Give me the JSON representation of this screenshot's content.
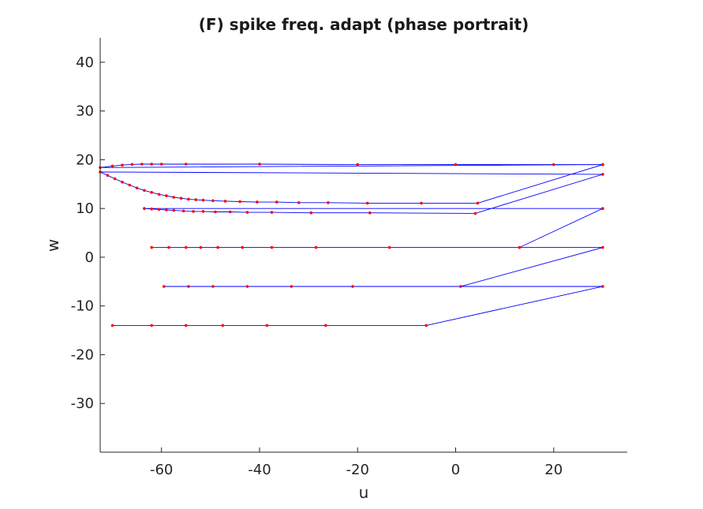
{
  "chart_data": {
    "type": "line",
    "title": "(F) spike freq. adapt (phase portrait)",
    "xlabel": "u",
    "ylabel": "w",
    "xlim": [
      -72.5,
      35
    ],
    "ylim": [
      -40,
      45
    ],
    "xticks": [
      -60,
      -40,
      -20,
      0,
      20
    ],
    "yticks": [
      -30,
      -20,
      -10,
      0,
      10,
      20,
      30,
      40
    ],
    "grid": false,
    "colors": {
      "trajectory": "#0000ff",
      "markers": "#ff0000",
      "axes": "#262626"
    },
    "series": [
      {
        "points": [
          [
            -70,
            -14
          ],
          [
            -62,
            -14
          ],
          [
            -55,
            -14
          ],
          [
            -47.5,
            -14
          ],
          [
            -38.5,
            -14
          ],
          [
            -26.5,
            -14
          ],
          [
            -6,
            -14
          ],
          [
            30,
            -6
          ],
          [
            -59.5,
            -6
          ],
          [
            -54.5,
            -6
          ],
          [
            -49.5,
            -6
          ],
          [
            -42.5,
            -6
          ],
          [
            -33.5,
            -6
          ],
          [
            -21,
            -6
          ],
          [
            1,
            -6
          ],
          [
            30,
            2
          ],
          [
            -62,
            2
          ],
          [
            -58.5,
            2
          ],
          [
            -55,
            2
          ],
          [
            -52,
            2
          ],
          [
            -48.5,
            2
          ],
          [
            -43.5,
            2
          ],
          [
            -37.5,
            2
          ],
          [
            -28.5,
            2
          ],
          [
            -13.5,
            2
          ],
          [
            13,
            2
          ],
          [
            30,
            10
          ],
          [
            -63.5,
            10
          ],
          [
            -62,
            9.9
          ],
          [
            -60.5,
            9.8
          ],
          [
            -59,
            9.7
          ],
          [
            -57.5,
            9.6
          ],
          [
            -55.5,
            9.5
          ],
          [
            -53.5,
            9.4
          ],
          [
            -51.5,
            9.4
          ],
          [
            -49,
            9.3
          ],
          [
            -46,
            9.3
          ],
          [
            -42.5,
            9.2
          ],
          [
            -37.5,
            9.2
          ],
          [
            -29.5,
            9.1
          ],
          [
            -17.5,
            9.1
          ],
          [
            4,
            9
          ],
          [
            30,
            17
          ],
          [
            -72.5,
            17.5
          ],
          [
            -71,
            16.8
          ],
          [
            -69.5,
            16.1
          ],
          [
            -68,
            15.4
          ],
          [
            -66.5,
            14.8
          ],
          [
            -65,
            14.2
          ],
          [
            -63.5,
            13.7
          ],
          [
            -62,
            13.3
          ],
          [
            -60.5,
            12.9
          ],
          [
            -59,
            12.6
          ],
          [
            -57.5,
            12.3
          ],
          [
            -56,
            12.1
          ],
          [
            -54.5,
            11.9
          ],
          [
            -53,
            11.8
          ],
          [
            -51.5,
            11.7
          ],
          [
            -49.5,
            11.6
          ],
          [
            -47,
            11.5
          ],
          [
            -44,
            11.4
          ],
          [
            -40.5,
            11.3
          ],
          [
            -36.5,
            11.3
          ],
          [
            -32,
            11.2
          ],
          [
            -26,
            11.2
          ],
          [
            -18,
            11.1
          ],
          [
            -7,
            11.1
          ],
          [
            4.5,
            11.1
          ],
          [
            30,
            19
          ],
          [
            -72.5,
            18.4
          ],
          [
            -70,
            18.7
          ],
          [
            -68,
            18.9
          ],
          [
            -66,
            19.05
          ],
          [
            -64,
            19.1
          ],
          [
            -62,
            19.1
          ],
          [
            -60,
            19.1
          ],
          [
            -55,
            19.1
          ],
          [
            -40,
            19.1
          ],
          [
            -20,
            19
          ],
          [
            0,
            19
          ],
          [
            20,
            19
          ],
          [
            30,
            19
          ]
        ]
      }
    ]
  }
}
